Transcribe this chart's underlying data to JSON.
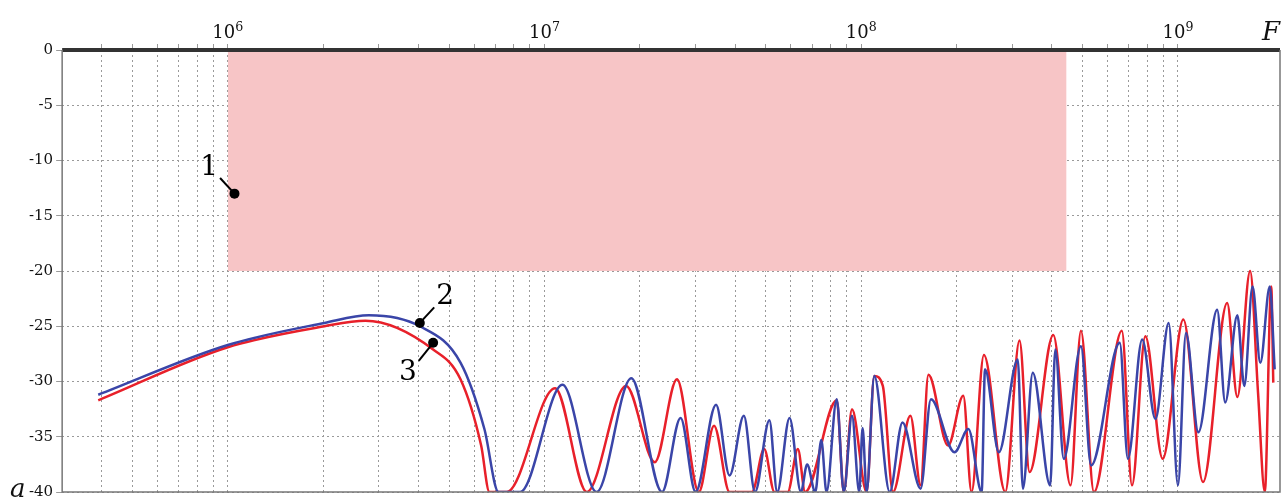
{
  "chart_data": {
    "type": "line",
    "xlabel": "F",
    "ylabel": "a",
    "log": "x",
    "grid": true,
    "legend": false,
    "xlim": [
      300000,
      2100000000
    ],
    "ylim": [
      -40,
      0
    ],
    "xticks": [
      {
        "value": 400000,
        "label": null
      },
      {
        "value": 500000,
        "label": null
      },
      {
        "value": 600000,
        "label": null
      },
      {
        "value": 700000,
        "label": null
      },
      {
        "value": 800000,
        "label": null
      },
      {
        "value": 900000,
        "label": null
      },
      {
        "value": 1000000,
        "label": "10$^{6}$"
      },
      {
        "value": 2000000,
        "label": null
      },
      {
        "value": 3000000,
        "label": null
      },
      {
        "value": 4000000,
        "label": null
      },
      {
        "value": 5000000,
        "label": null
      },
      {
        "value": 6000000,
        "label": null
      },
      {
        "value": 7000000,
        "label": null
      },
      {
        "value": 8000000,
        "label": null
      },
      {
        "value": 9000000,
        "label": null
      },
      {
        "value": 10000000,
        "label": "10$^{7}$"
      },
      {
        "value": 20000000,
        "label": null
      },
      {
        "value": 30000000,
        "label": null
      },
      {
        "value": 40000000,
        "label": null
      },
      {
        "value": 50000000,
        "label": null
      },
      {
        "value": 60000000,
        "label": null
      },
      {
        "value": 70000000,
        "label": null
      },
      {
        "value": 80000000,
        "label": null
      },
      {
        "value": 90000000,
        "label": null
      },
      {
        "value": 100000000,
        "label": "10$^{8}$"
      },
      {
        "value": 200000000,
        "label": null
      },
      {
        "value": 300000000,
        "label": null
      },
      {
        "value": 400000000,
        "label": null
      },
      {
        "value": 500000000,
        "label": null
      },
      {
        "value": 600000000,
        "label": null
      },
      {
        "value": 700000000,
        "label": null
      },
      {
        "value": 800000000,
        "label": null
      },
      {
        "value": 900000000,
        "label": null
      },
      {
        "value": 1000000000,
        "label": "10$^{9}$"
      }
    ],
    "yticks": [
      0,
      -5,
      -10,
      -15,
      -20,
      -25,
      -30,
      -35,
      -40
    ],
    "series": [
      {
        "type": "area",
        "color": "#f7c5c6",
        "x": [
          1000000,
          445000000
        ],
        "values": [
          -20,
          -20
        ]
      },
      {
        "type": "line",
        "color": "#e8202a",
        "x": [
          390000,
          1000000,
          2020000,
          2720000,
          4450000,
          5430000,
          6310000,
          6700000,
          7600000,
          10800000,
          13600000,
          18100000,
          22300000,
          26200000,
          30700000,
          34300000,
          38400000,
          45200000,
          49400000,
          53200000,
          58600000,
          63100000,
          66500000,
          83700000,
          88100000,
          93500000,
          104000000,
          110000000,
          117000000,
          126000000,
          143000000,
          154000000,
          163000000,
          188000000,
          210000000,
          223000000,
          244000000,
          285000000,
          316000000,
          340000000,
          404000000,
          458000000,
          494000000,
          543000000,
          665000000,
          716000000,
          789000000,
          895000000,
          1040000000,
          1200000000,
          1430000000,
          1540000000,
          1690000000,
          1790000000,
          1880000000,
          1970000000,
          2000000000
        ],
        "values": [
          -31.7,
          -26.9,
          -25.0,
          -24.5,
          -27.1,
          -29.8,
          -35.8,
          -40,
          -40,
          -30.6,
          -40,
          -30.4,
          -37.3,
          -29.8,
          -40,
          -34.0,
          -40,
          -40,
          -36.1,
          -40,
          -40,
          -36.1,
          -40,
          -31.7,
          -40,
          -32.5,
          -40,
          -29.5,
          -30.4,
          -40,
          -33.1,
          -39.4,
          -29.4,
          -35.8,
          -31.3,
          -40,
          -27.6,
          -40,
          -26.3,
          -38.2,
          -25.8,
          -39.4,
          -25.4,
          -40,
          -25.4,
          -39.4,
          -25.9,
          -37.0,
          -24.4,
          -39.1,
          -22.9,
          -31.4,
          -20.0,
          -31.0,
          -40,
          -21.4,
          -30.1
        ]
      },
      {
        "type": "line",
        "color": "#3a45a8",
        "x": [
          390000,
          1000000,
          2020000,
          2790000,
          4040000,
          5430000,
          6460000,
          7160000,
          8370000,
          11400000,
          14600000,
          18800000,
          23500000,
          26900000,
          30000000,
          34800000,
          38400000,
          42600000,
          46200000,
          51300000,
          54300000,
          59400000,
          64500000,
          67500000,
          71600000,
          74800000,
          77700000,
          83700000,
          88100000,
          93500000,
          98600000,
          101000000,
          104000000,
          110000000,
          123000000,
          135000000,
          154000000,
          166000000,
          197000000,
          218000000,
          240000000,
          246000000,
          272000000,
          312000000,
          324000000,
          348000000,
          395000000,
          410000000,
          436000000,
          494000000,
          532000000,
          655000000,
          695000000,
          771000000,
          849000000,
          935000000,
          1000000000,
          1060000000,
          1160000000,
          1330000000,
          1410000000,
          1540000000,
          1620000000,
          1720000000,
          1820000000,
          1950000000,
          2020000000
        ],
        "values": [
          -31.2,
          -26.7,
          -24.7,
          -24.0,
          -25.0,
          -28.3,
          -34.3,
          -40,
          -40,
          -30.3,
          -40,
          -29.7,
          -40,
          -33.3,
          -40,
          -32.1,
          -38.5,
          -33.1,
          -40,
          -33.5,
          -40,
          -33.3,
          -40,
          -37.5,
          -40,
          -35.3,
          -40,
          -31.6,
          -40,
          -33.1,
          -40,
          -34.2,
          -40,
          -29.5,
          -40,
          -33.7,
          -39.7,
          -31.6,
          -36.4,
          -34.3,
          -40,
          -28.9,
          -36.4,
          -28.0,
          -39.7,
          -29.2,
          -39.4,
          -27.1,
          -37.0,
          -26.8,
          -37.6,
          -26.5,
          -37.0,
          -26.2,
          -33.4,
          -24.7,
          -39.4,
          -25.6,
          -34.6,
          -23.5,
          -31.9,
          -24.0,
          -30.4,
          -21.4,
          -28.3,
          -21.4,
          -28.9
        ]
      }
    ],
    "annotations": [
      {
        "text": "1",
        "x": 1050000,
        "y": -13
      },
      {
        "text": "2",
        "x": 4040000,
        "y": -24.7
      },
      {
        "text": "3",
        "x": 4450000,
        "y": -26.5
      }
    ]
  }
}
